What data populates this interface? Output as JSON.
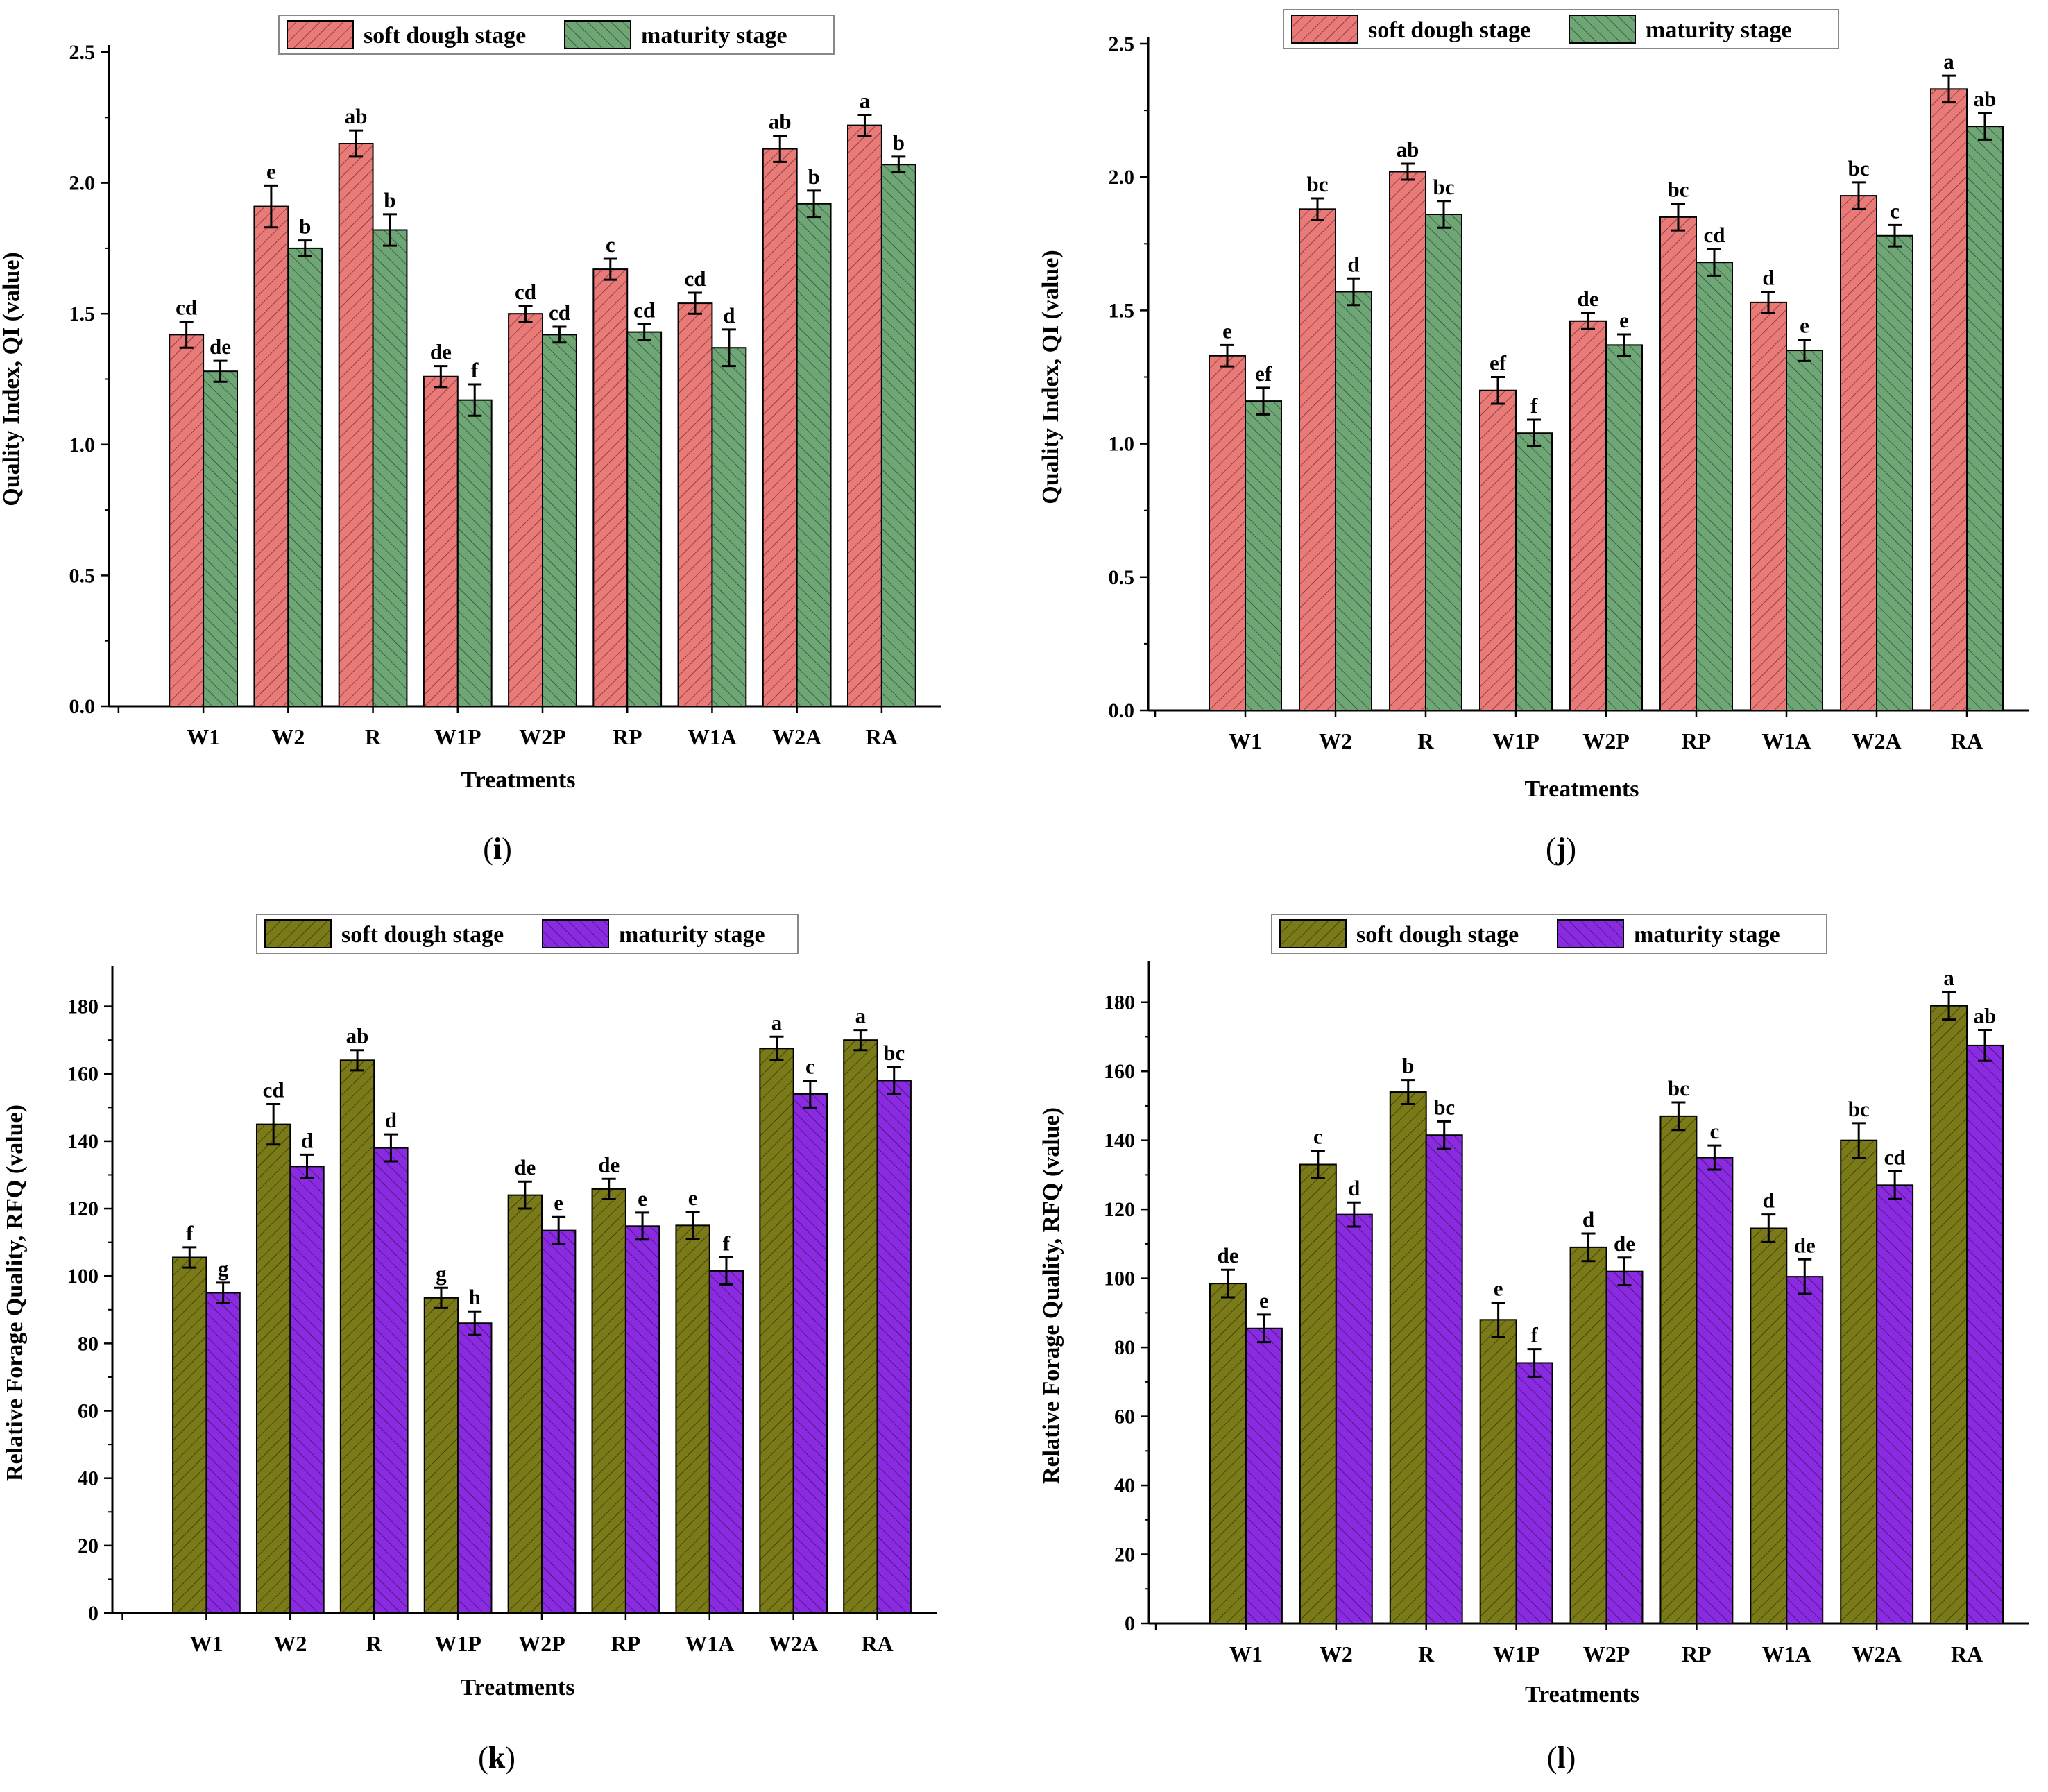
{
  "figure": {
    "panels": [
      "i",
      "j",
      "k",
      "l"
    ]
  },
  "chart_data": [
    {
      "panel": "i",
      "type": "bar",
      "title": "",
      "xlabel": "Treatments",
      "ylabel": "Quality Index, QI (value)",
      "ylim": [
        0,
        2.5
      ],
      "yticks": [
        0.0,
        0.5,
        1.0,
        1.5,
        2.0,
        2.5
      ],
      "ytick_labels": [
        "0.0",
        "0.5",
        "1.0",
        "1.5",
        "2.0",
        "2.5"
      ],
      "categories": [
        "W1",
        "W2",
        "R",
        "W1P",
        "W2P",
        "RP",
        "W1A",
        "W2A",
        "RA"
      ],
      "legend": "top-center",
      "series": [
        {
          "name": "soft dough stage",
          "color": "#ea7a78",
          "values": [
            1.42,
            1.91,
            2.15,
            1.26,
            1.5,
            1.67,
            1.54,
            2.13,
            2.22
          ],
          "errors": [
            0.05,
            0.08,
            0.05,
            0.04,
            0.03,
            0.04,
            0.04,
            0.05,
            0.04
          ],
          "letters": [
            "cd",
            "e",
            "ab",
            "de",
            "cd",
            "c",
            "cd",
            "ab",
            "a"
          ]
        },
        {
          "name": "maturity stage",
          "color": "#6fa676",
          "values": [
            1.28,
            1.75,
            1.82,
            1.17,
            1.42,
            1.43,
            1.37,
            1.92,
            2.07
          ],
          "errors": [
            0.04,
            0.03,
            0.06,
            0.06,
            0.03,
            0.03,
            0.07,
            0.05,
            0.03
          ],
          "letters": [
            "de",
            "b",
            "b",
            "f",
            "cd",
            "cd",
            "d",
            "b",
            "b"
          ]
        }
      ]
    },
    {
      "panel": "j",
      "type": "bar",
      "title": "",
      "xlabel": "Treatments",
      "ylabel": "Quality Index, QI (value)",
      "ylim": [
        0,
        2.5
      ],
      "yticks": [
        0.0,
        0.5,
        1.0,
        1.5,
        2.0,
        2.5
      ],
      "ytick_labels": [
        "0.0",
        "0.5",
        "1.0",
        "1.5",
        "2.0",
        "2.5"
      ],
      "categories": [
        "W1",
        "W2",
        "R",
        "W1P",
        "W2P",
        "RP",
        "W1A",
        "W2A",
        "RA"
      ],
      "legend": "top-center",
      "series": [
        {
          "name": "soft dough stage",
          "color": "#ea7a78",
          "values": [
            1.33,
            1.88,
            2.02,
            1.2,
            1.46,
            1.85,
            1.53,
            1.93,
            2.33
          ],
          "errors": [
            0.04,
            0.04,
            0.03,
            0.05,
            0.03,
            0.05,
            0.04,
            0.05,
            0.05
          ],
          "letters": [
            "e",
            "bc",
            "ab",
            "ef",
            "de",
            "bc",
            "d",
            "bc",
            "a"
          ]
        },
        {
          "name": "maturity stage",
          "color": "#6fa676",
          "values": [
            1.16,
            1.57,
            1.86,
            1.04,
            1.37,
            1.68,
            1.35,
            1.78,
            2.19
          ],
          "errors": [
            0.05,
            0.05,
            0.05,
            0.05,
            0.04,
            0.05,
            0.04,
            0.04,
            0.05
          ],
          "letters": [
            "ef",
            "d",
            "bc",
            "f",
            "e",
            "cd",
            "e",
            "c",
            "ab"
          ]
        }
      ]
    },
    {
      "panel": "k",
      "type": "bar",
      "title": "",
      "xlabel": "Treatments",
      "ylabel": "Relative Forage Quality, RFQ (value)",
      "ylim": [
        0,
        190
      ],
      "yticks": [
        0,
        20,
        40,
        60,
        80,
        100,
        120,
        140,
        160,
        180
      ],
      "ytick_labels": [
        "0",
        "20",
        "40",
        "60",
        "80",
        "100",
        "120",
        "140",
        "160",
        "180"
      ],
      "categories": [
        "W1",
        "W2",
        "R",
        "W1P",
        "W2P",
        "RP",
        "W1A",
        "W2A",
        "RA"
      ],
      "legend": "top-center",
      "series": [
        {
          "name": "soft dough stage",
          "color": "#7a7a18",
          "values": [
            105.5,
            145.0,
            164.0,
            93.5,
            124.0,
            125.8,
            115.0,
            167.5,
            170.0
          ],
          "errors": [
            3.0,
            6.0,
            3.0,
            3.0,
            4.0,
            3.0,
            4.0,
            3.5,
            3.0
          ],
          "letters": [
            "f",
            "cd",
            "ab",
            "g",
            "de",
            "de",
            "e",
            "a",
            "a"
          ]
        },
        {
          "name": "maturity stage",
          "color": "#8a2be2",
          "values": [
            95.0,
            132.5,
            138.0,
            86.0,
            113.5,
            114.8,
            101.5,
            154.0,
            158.0
          ],
          "errors": [
            3.0,
            3.5,
            4.0,
            3.5,
            4.0,
            4.0,
            4.0,
            4.0,
            4.0
          ],
          "letters": [
            "g",
            "d",
            "d",
            "h",
            "e",
            "e",
            "f",
            "c",
            "bc"
          ]
        }
      ]
    },
    {
      "panel": "l",
      "type": "bar",
      "title": "",
      "xlabel": "Treatments",
      "ylabel": "Relative Forage Quality, RFQ (value)",
      "ylim": [
        0,
        190
      ],
      "yticks": [
        0,
        20,
        40,
        60,
        80,
        100,
        120,
        140,
        160,
        180
      ],
      "ytick_labels": [
        "0",
        "20",
        "40",
        "60",
        "80",
        "100",
        "120",
        "140",
        "160",
        "180"
      ],
      "categories": [
        "W1",
        "W2",
        "R",
        "W1P",
        "W2P",
        "RP",
        "W1A",
        "W2A",
        "RA"
      ],
      "legend": "top-center",
      "series": [
        {
          "name": "soft dough stage",
          "color": "#7a7a18",
          "values": [
            98.5,
            133.0,
            154.0,
            88.0,
            109.0,
            147.0,
            114.5,
            140.0,
            179.0
          ],
          "errors": [
            4.0,
            4.0,
            3.5,
            5.0,
            4.0,
            4.0,
            4.0,
            5.0,
            4.0
          ],
          "letters": [
            "de",
            "c",
            "b",
            "e",
            "d",
            "bc",
            "d",
            "bc",
            "a"
          ]
        },
        {
          "name": "maturity stage",
          "color": "#8a2be2",
          "values": [
            85.5,
            118.5,
            141.5,
            75.5,
            102.0,
            135.0,
            100.5,
            127.0,
            167.5
          ],
          "errors": [
            4.0,
            3.5,
            4.0,
            4.0,
            4.0,
            3.5,
            5.0,
            4.0,
            4.5
          ],
          "letters": [
            "e",
            "d",
            "bc",
            "f",
            "de",
            "c",
            "de",
            "cd",
            "ab"
          ]
        }
      ]
    }
  ]
}
